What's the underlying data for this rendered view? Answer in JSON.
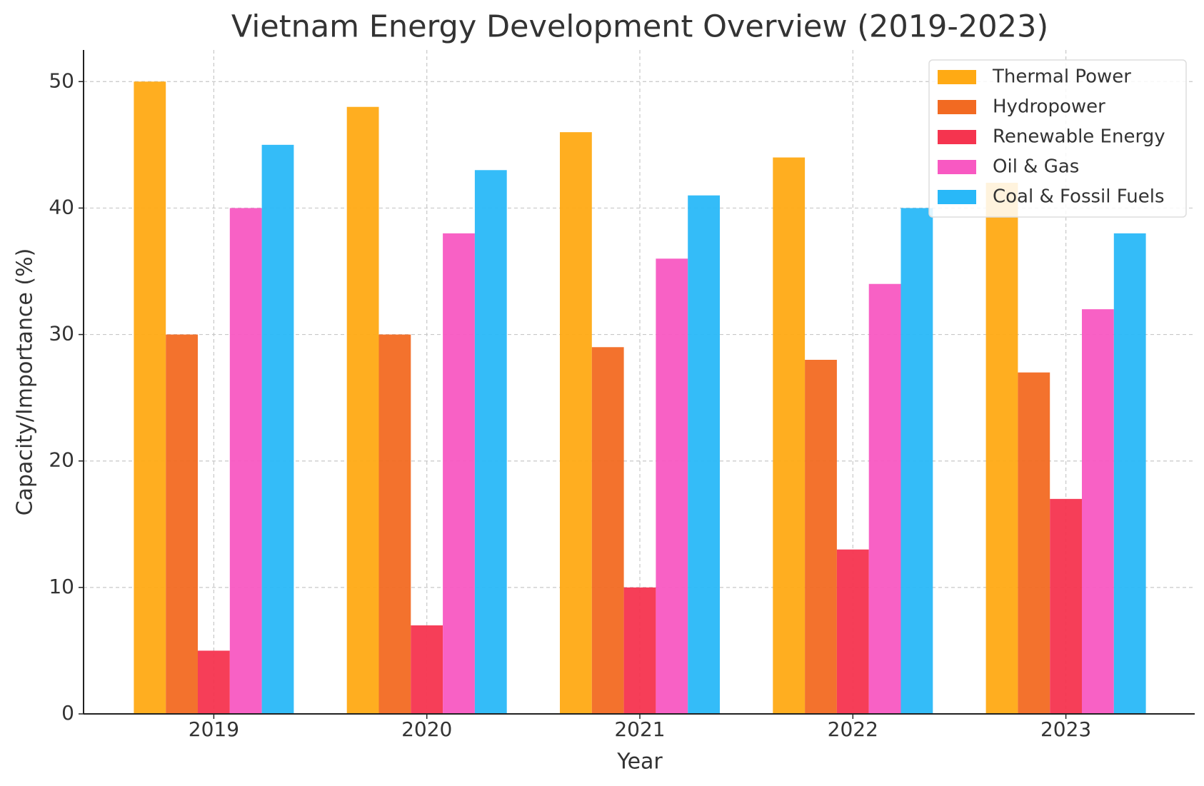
{
  "chart_data": {
    "type": "bar",
    "title": "Vietnam Energy Development Overview (2019-2023)",
    "x_label": "Year",
    "y_label": "Capacity/Importance (%)",
    "categories": [
      "2019",
      "2020",
      "2021",
      "2022",
      "2023"
    ],
    "series": [
      {
        "name": "Thermal Power",
        "color": "#ffaa14",
        "values": [
          50,
          48,
          46,
          44,
          42
        ]
      },
      {
        "name": "Hydropower",
        "color": "#f26a22",
        "values": [
          30,
          30,
          29,
          28,
          27
        ]
      },
      {
        "name": "Renewable Energy",
        "color": "#f5344f",
        "values": [
          5,
          7,
          10,
          13,
          17
        ]
      },
      {
        "name": "Oil & Gas",
        "color": "#f859c2",
        "values": [
          40,
          38,
          36,
          34,
          32
        ]
      },
      {
        "name": "Coal & Fossil Fuels",
        "color": "#29b8f8",
        "values": [
          45,
          43,
          41,
          40,
          38
        ]
      }
    ],
    "ylim": [
      0,
      52.5
    ],
    "yticks": [
      0,
      10,
      20,
      30,
      40,
      50
    ],
    "grid": true,
    "legend": "upper right"
  }
}
